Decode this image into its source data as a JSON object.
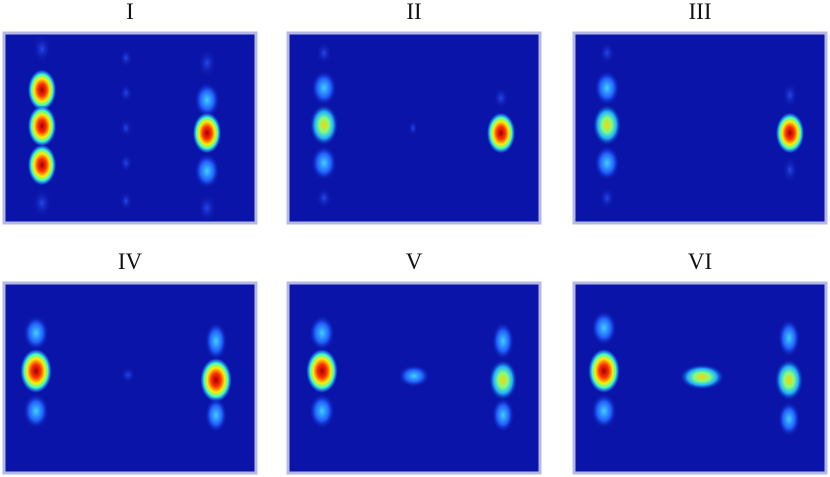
{
  "panels": [
    {
      "label": "I"
    },
    {
      "label": "II"
    },
    {
      "label": "III"
    },
    {
      "label": "IV"
    },
    {
      "label": "V"
    },
    {
      "label": "VI"
    }
  ]
}
